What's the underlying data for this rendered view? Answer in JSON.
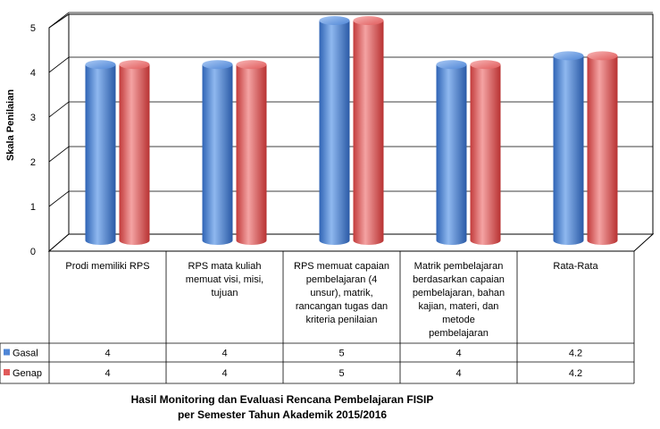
{
  "chart_data": {
    "type": "bar",
    "categories": [
      [
        "Prodi memiliki RPS"
      ],
      [
        "RPS mata kuliah",
        "memuat visi, misi,",
        "tujuan"
      ],
      [
        "RPS memuat capaian",
        "pembelajaran (4",
        "unsur), matrik,",
        "rancangan tugas dan",
        "kriteria penilaian"
      ],
      [
        "Matrik pembelajaran",
        "berdasarkan capaian",
        "pembelajaran, bahan",
        "kajian, materi, dan",
        "metode",
        "pembelajaran"
      ],
      [
        "Rata-Rata"
      ]
    ],
    "series": [
      {
        "name": "Gasal",
        "values": [
          4,
          4,
          5,
          4,
          4.2
        ],
        "labels": [
          "4",
          "4",
          "5",
          "4",
          "4.2"
        ],
        "color": "#4f86d6"
      },
      {
        "name": "Genap",
        "values": [
          4,
          4,
          5,
          4,
          4.2
        ],
        "labels": [
          "4",
          "4",
          "5",
          "4",
          "4.2"
        ],
        "color": "#e05a5a"
      }
    ],
    "title": [
      "Hasil Monitoring dan Evaluasi Rencana Pembelajaran FISIP",
      "per Semester Tahun Akademik 2015/2016"
    ],
    "ylabel": "Skala Penilaian",
    "yticks": [
      "0",
      "1",
      "2",
      "3",
      "4",
      "5"
    ],
    "ylim": [
      0,
      5
    ],
    "grid": true,
    "legend": "data-table-left",
    "style": "3d-cylinder"
  }
}
